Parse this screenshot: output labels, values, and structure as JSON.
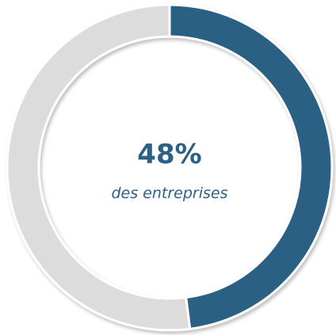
{
  "chart_data": {
    "type": "donut",
    "values": [
      48,
      52
    ],
    "value_labels": [
      "48%",
      null
    ],
    "colors": [
      "#2b6184",
      "#dcdcdc"
    ],
    "subtitle": "des entreprises"
  }
}
